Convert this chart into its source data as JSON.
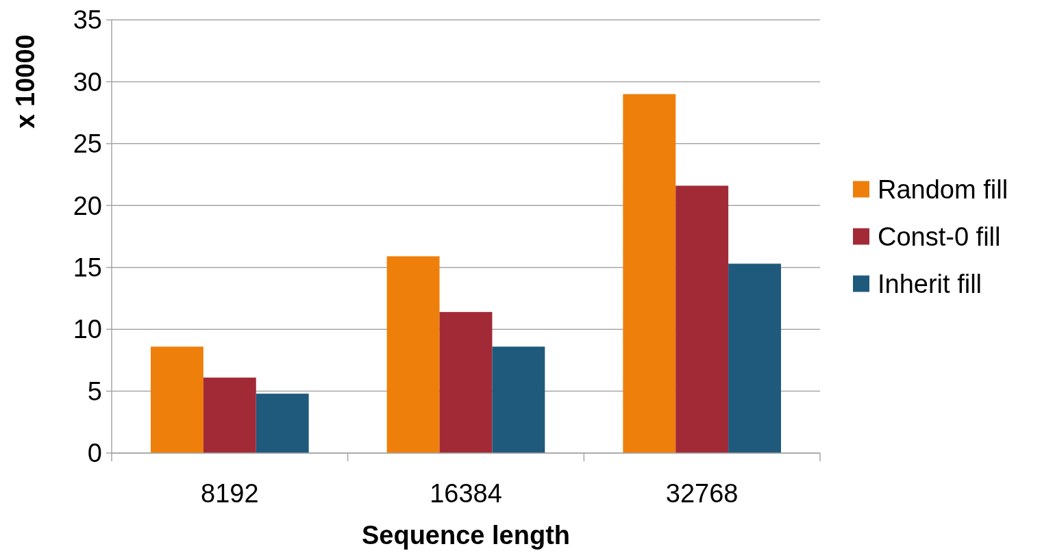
{
  "chart_data": {
    "type": "bar",
    "xlabel": "Sequence length",
    "ylabel": "x 10000",
    "categories": [
      "8192",
      "16384",
      "32768"
    ],
    "series": [
      {
        "name": "Random fill",
        "color": "#ef7f0b",
        "values": [
          8.6,
          15.9,
          29.0
        ]
      },
      {
        "name": "Const-0 fill",
        "color": "#a22a37",
        "values": [
          6.1,
          11.4,
          21.6
        ]
      },
      {
        "name": "Inherit fill",
        "color": "#1f5a7c",
        "values": [
          4.8,
          8.6,
          15.3
        ]
      }
    ],
    "ylim": [
      0,
      35
    ],
    "yticks": [
      0,
      5,
      10,
      15,
      20,
      25,
      30,
      35
    ],
    "grid": "y",
    "legend": "right"
  }
}
